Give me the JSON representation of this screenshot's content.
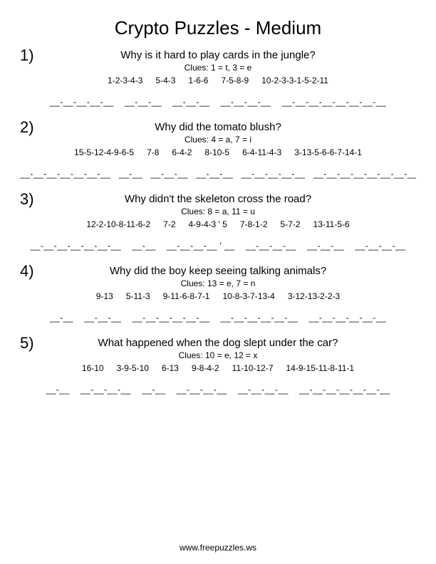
{
  "title": "Crypto Puzzles - Medium",
  "footer": "www.freepuzzles.ws",
  "puzzles": [
    {
      "num": "1)",
      "question": "Why is it hard to play cards in the jungle?",
      "clues": "Clues: 1 = t, 3 = e",
      "codes": [
        "1-2-3-4-3",
        "5-4-3",
        "1-6-6",
        "7-5-8-9",
        "10-2-3-3-1-5-2-11"
      ],
      "blanks": "__-__-__-__-__    __-__-__    __-__-__    __-__-__-__    __-__-__-__-__-__-__-__"
    },
    {
      "num": "2)",
      "question": "Why did the tomato blush?",
      "clues": "Clues: 4 = a, 7 = i",
      "codes": [
        "15-5-12-4-9-6-5",
        "7-8",
        "6-4-2",
        "8-10-5",
        "6-4-11-4-3",
        "3-13-5-6-6-7-14-1"
      ],
      "blanks": "__-__-__-__-__-__-__   __-__   __-__-__   __-__-__   __-__-__-__-__   __-__-__-__-__-__-__-__"
    },
    {
      "num": "3)",
      "question": "Why didn't the skeleton cross the road?",
      "clues": "Clues: 8 = a, 11 = u",
      "codes": [
        "12-2-10-8-11-6-2",
        "7-2",
        "4-9-4-3 ' 5",
        "7-8-1-2",
        "5-7-2",
        "13-11-5-6"
      ],
      "blanks": "__-__-__-__-__-__-__    __-__    __-__-__-__ ' __    __-__-__-__    __-__-__    __-__-__-__"
    },
    {
      "num": "4)",
      "question": "Why did the boy keep seeing talking animals?",
      "clues": "Clues: 13 = e, 7 = n",
      "codes": [
        "9-13",
        "5-11-3",
        "9-11-6-8-7-1",
        "10-8-3-7-13-4",
        "3-12-13-2-2-3"
      ],
      "blanks": "__-__    __-__-__    __-__-__-__-__-__    __-__-__-__-__-__    __-__-__-__-__-__"
    },
    {
      "num": "5)",
      "question": "What happened when the dog slept under the car?",
      "clues": "Clues: 10 = e, 12 = x",
      "codes": [
        "16-10",
        "3-9-5-10",
        "6-13",
        "9-8-4-2",
        "11-10-12-7",
        "14-9-15-11-8-11-1"
      ],
      "blanks": "__-__    __-__-__-__    __-__    __-__-__-__    __-__-__-__    __-__-__-__-__-__-__"
    }
  ]
}
